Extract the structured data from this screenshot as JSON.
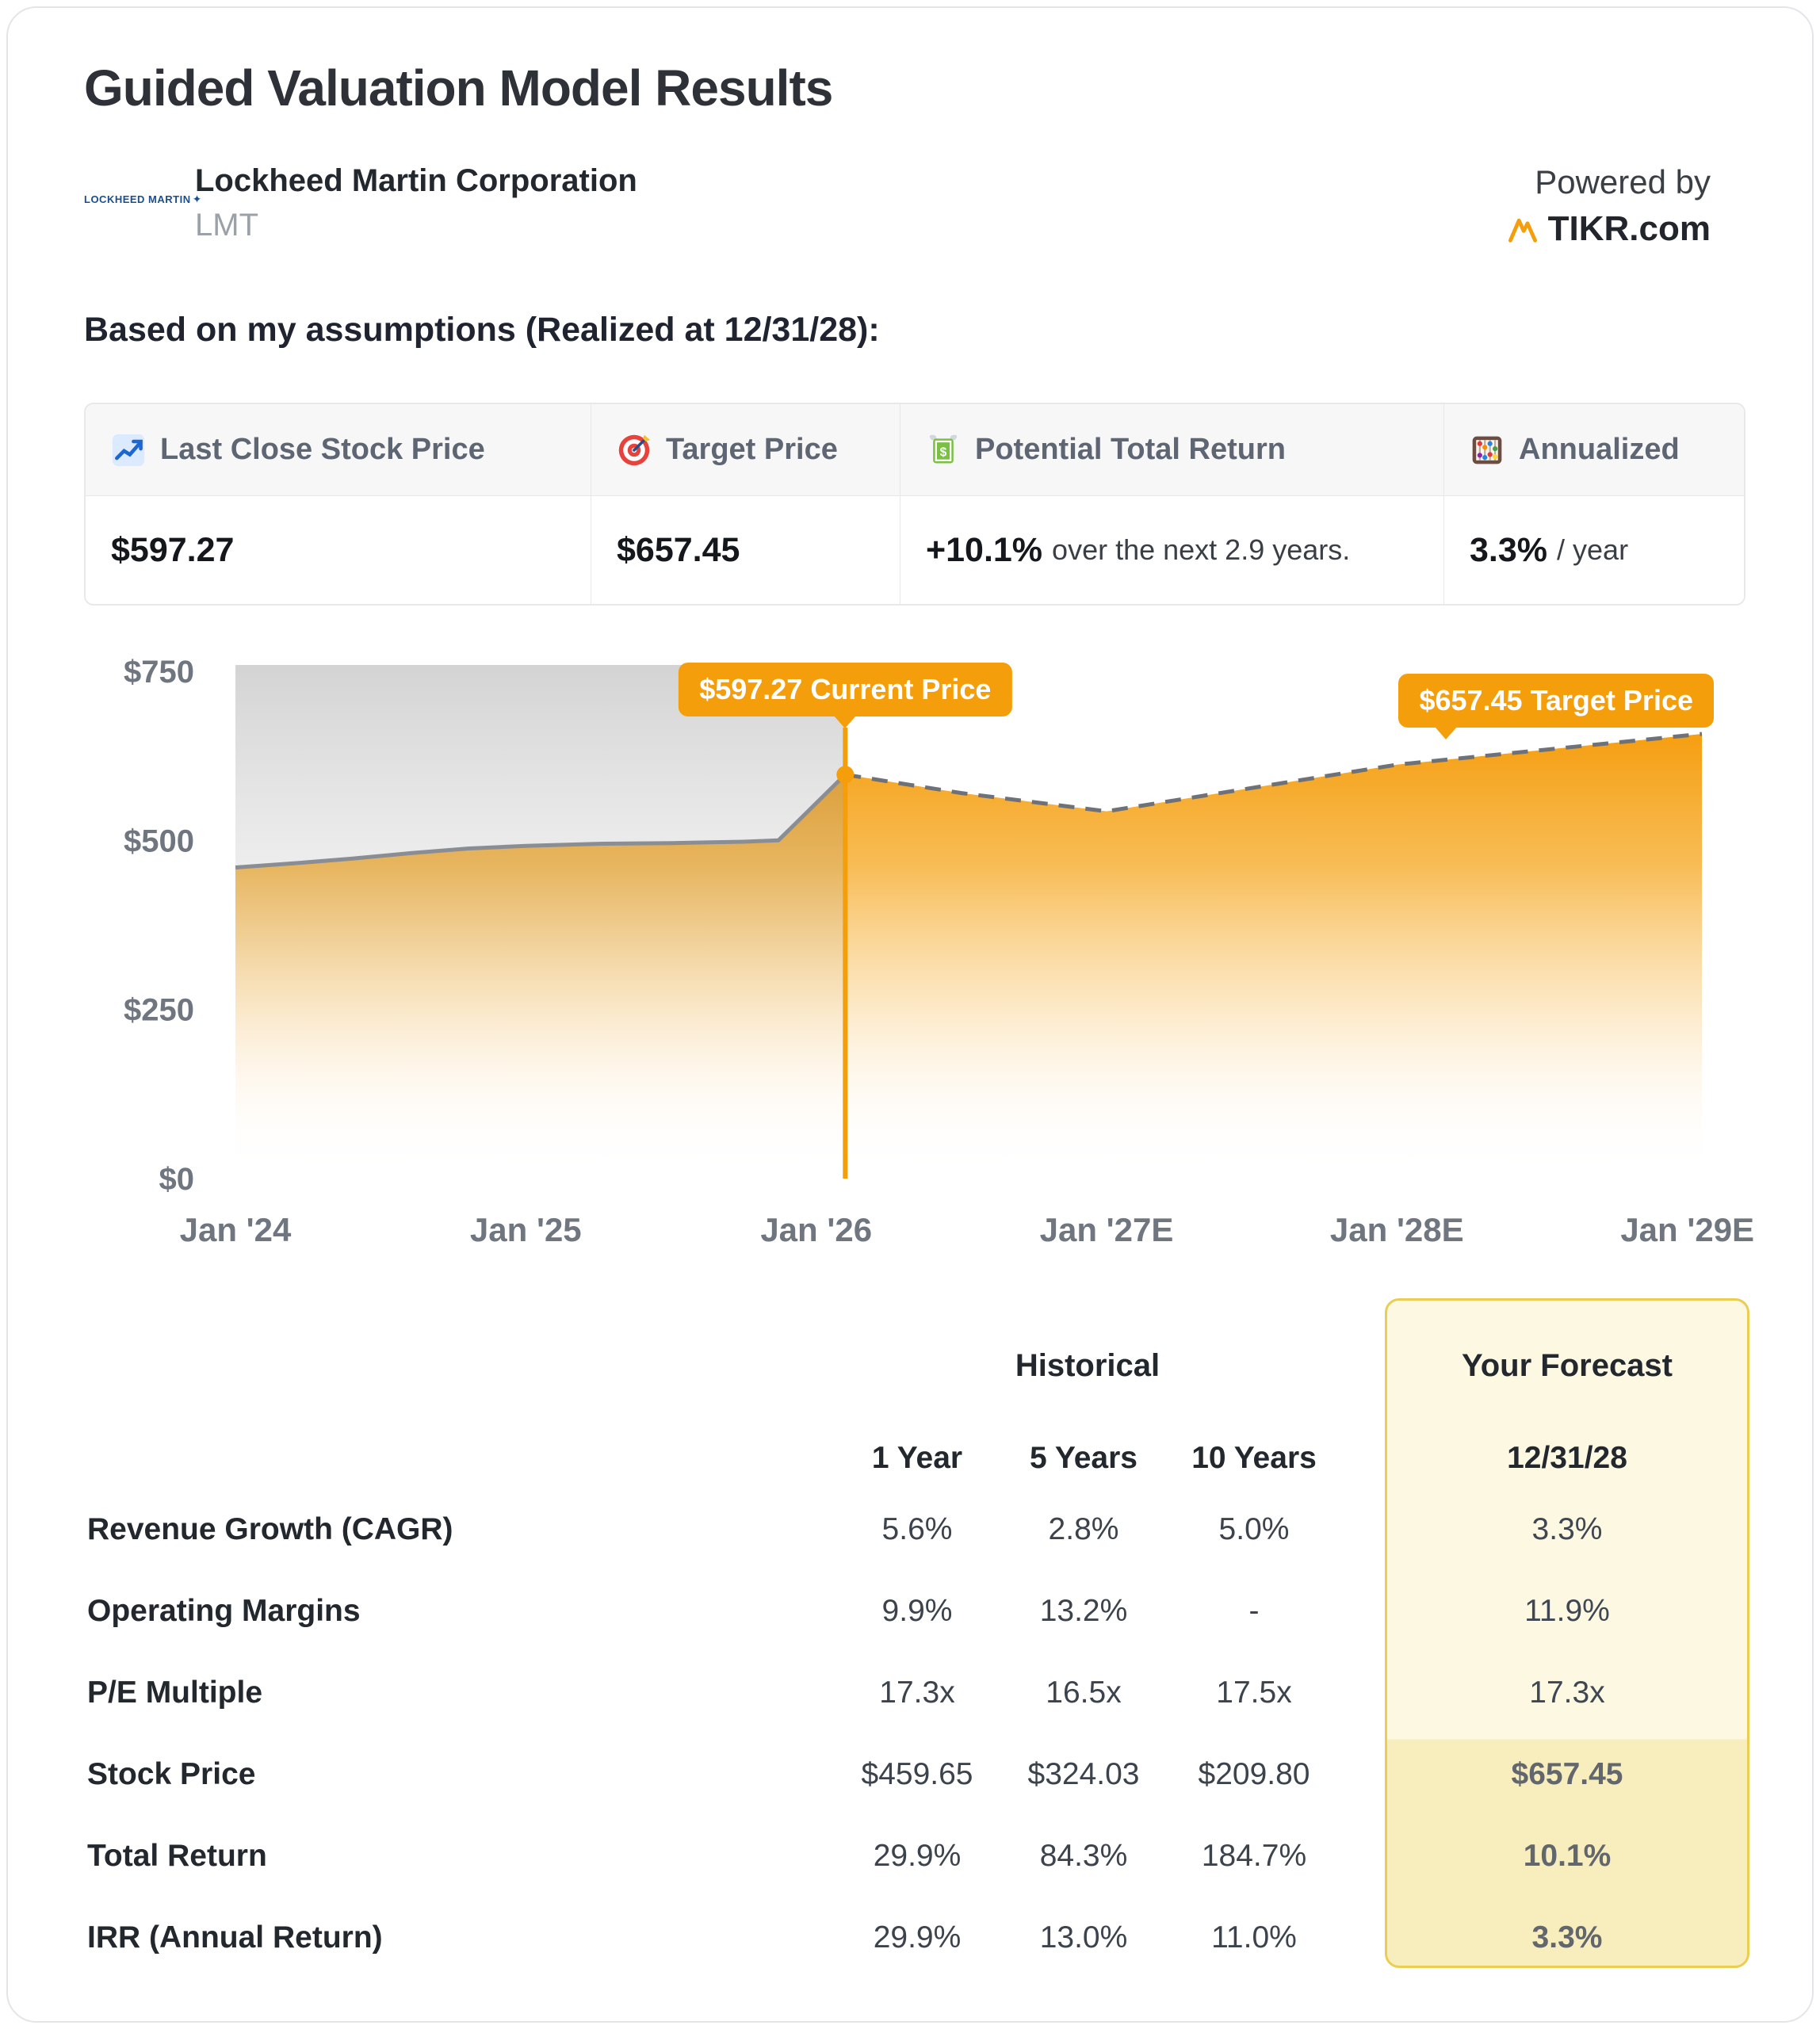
{
  "header": {
    "title": "Guided Valuation Model Results",
    "company_name": "Lockheed Martin Corporation",
    "ticker": "LMT",
    "logo_text": "LOCKHEED MARTIN",
    "powered_by": "Powered by",
    "brand": "TIKR.com"
  },
  "assumptions_heading": "Based on my assumptions (Realized at 12/31/28):",
  "summary_table": {
    "headers": [
      {
        "icon": "chart-increasing-icon",
        "label": "Last Close Stock Price"
      },
      {
        "icon": "target-icon",
        "label": "Target Price"
      },
      {
        "icon": "money-with-wings-icon",
        "label": "Potential Total Return"
      },
      {
        "icon": "abacus-icon",
        "label": "Annualized"
      }
    ],
    "values": [
      {
        "main": "$597.27",
        "suffix": ""
      },
      {
        "main": "$657.45",
        "suffix": ""
      },
      {
        "main": "+10.1%",
        "suffix": "over the next 2.9 years."
      },
      {
        "main": "3.3%",
        "suffix": "/ year"
      }
    ]
  },
  "chart_data": {
    "type": "area",
    "title": "",
    "xlabel": "",
    "ylabel": "",
    "x_labels": [
      "Jan '24",
      "Jan '25",
      "Jan '26",
      "Jan '27E",
      "Jan '28E",
      "Jan '29E"
    ],
    "x_label_positions": [
      2024,
      2025,
      2026,
      2027,
      2028,
      2029
    ],
    "x_range": [
      2024,
      2029.05
    ],
    "ylim": [
      0,
      750
    ],
    "yticks": [
      {
        "value": 0,
        "label": "$0"
      },
      {
        "value": 250,
        "label": "$250"
      },
      {
        "value": 500,
        "label": "$500"
      },
      {
        "value": 750,
        "label": "$750"
      }
    ],
    "grid": false,
    "legend": false,
    "series": [
      {
        "name": "Historical Price",
        "style": "solid",
        "x": [
          2024.0,
          2024.2,
          2024.4,
          2024.6,
          2024.8,
          2025.0,
          2025.25,
          2025.5,
          2025.75,
          2025.87,
          2026.1
        ],
        "values": [
          460,
          466,
          473,
          481,
          488,
          492,
          495,
          496,
          498,
          500,
          597.27
        ]
      },
      {
        "name": "Forecast Price",
        "style": "dashed",
        "x": [
          2026.1,
          2026.5,
          2027.0,
          2028.0,
          2029.05
        ],
        "values": [
          597.27,
          570,
          543,
          612,
          657.45
        ]
      }
    ],
    "annotations": [
      {
        "id": "current",
        "label": "$597.27 Current Price",
        "x": 2026.1,
        "value": 597.27
      },
      {
        "id": "target",
        "label": "$657.45 Target Price",
        "x": 2029.05,
        "value": 657.45
      }
    ],
    "colors": {
      "area_top": "#F59E0B",
      "historical_line": "#8A8E94",
      "forecast_line": "#6E7278",
      "marker": "#F59E0B"
    }
  },
  "forecast_table": {
    "group_headers": {
      "historical": "Historical",
      "forecast": "Your Forecast"
    },
    "column_headers": [
      "1 Year",
      "5 Years",
      "10 Years",
      "12/31/28"
    ],
    "rows": [
      {
        "label": "Revenue Growth (CAGR)",
        "values": [
          "5.6%",
          "2.8%",
          "5.0%"
        ],
        "forecast": "3.3%",
        "emphasis": false
      },
      {
        "label": "Operating Margins",
        "values": [
          "9.9%",
          "13.2%",
          "-"
        ],
        "forecast": "11.9%",
        "emphasis": false
      },
      {
        "label": "P/E Multiple",
        "values": [
          "17.3x",
          "16.5x",
          "17.5x"
        ],
        "forecast": "17.3x",
        "emphasis": false
      },
      {
        "label": "Stock Price",
        "values": [
          "$459.65",
          "$324.03",
          "$209.80"
        ],
        "forecast": "$657.45",
        "emphasis": true
      },
      {
        "label": "Total Return",
        "values": [
          "29.9%",
          "84.3%",
          "184.7%"
        ],
        "forecast": "10.1%",
        "emphasis": true
      },
      {
        "label": "IRR (Annual Return)",
        "values": [
          "29.9%",
          "13.0%",
          "11.0%"
        ],
        "forecast": "3.3%",
        "emphasis": true
      }
    ]
  },
  "colors": {
    "accent_orange": "#F59E0B",
    "forecast_box_border": "#EACD52",
    "forecast_box_bg_top": "#FDF8E2",
    "forecast_box_bg_bottom": "#F8EDBC"
  }
}
